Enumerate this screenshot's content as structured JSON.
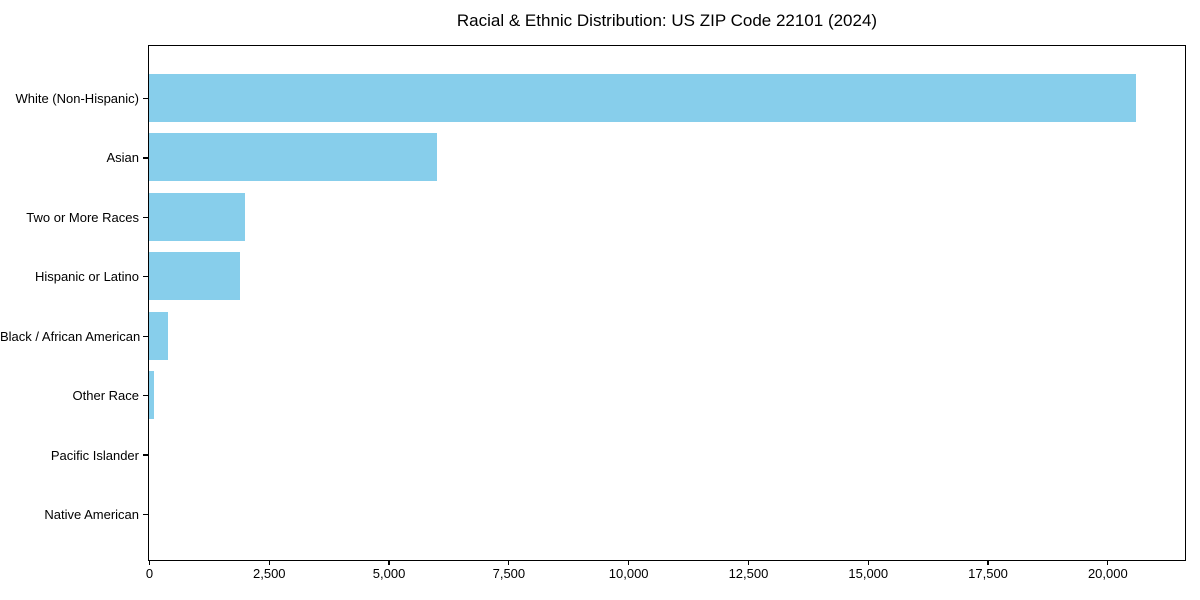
{
  "title": "Racial & Ethnic Distribution: US ZIP Code 22101 (2024)",
  "chart_data": {
    "type": "bar",
    "orientation": "horizontal",
    "title": "Racial & Ethnic Distribution: US ZIP Code 22101 (2024)",
    "xlabel": "",
    "ylabel": "",
    "categories": [
      "White (Non-Hispanic)",
      "Asian",
      "Two or More Races",
      "Hispanic or Latino",
      "Black / African American",
      "Other Race",
      "Pacific Islander",
      "Native American"
    ],
    "values": [
      20600,
      6000,
      2000,
      1900,
      400,
      100,
      0,
      0
    ],
    "xlim": [
      0,
      21600
    ],
    "x_ticks": [
      0,
      2500,
      5000,
      7500,
      10000,
      12500,
      15000,
      17500,
      20000
    ],
    "x_tick_labels": [
      "0",
      "2,500",
      "5,000",
      "7,500",
      "10,000",
      "12,500",
      "15,000",
      "17,500",
      "20,000"
    ],
    "bar_color": "#87CEEB",
    "grid": false,
    "legend": false
  },
  "colors": {
    "bar": "#87CEEB",
    "spine": "#000000",
    "text": "#000000",
    "background": "#ffffff"
  }
}
